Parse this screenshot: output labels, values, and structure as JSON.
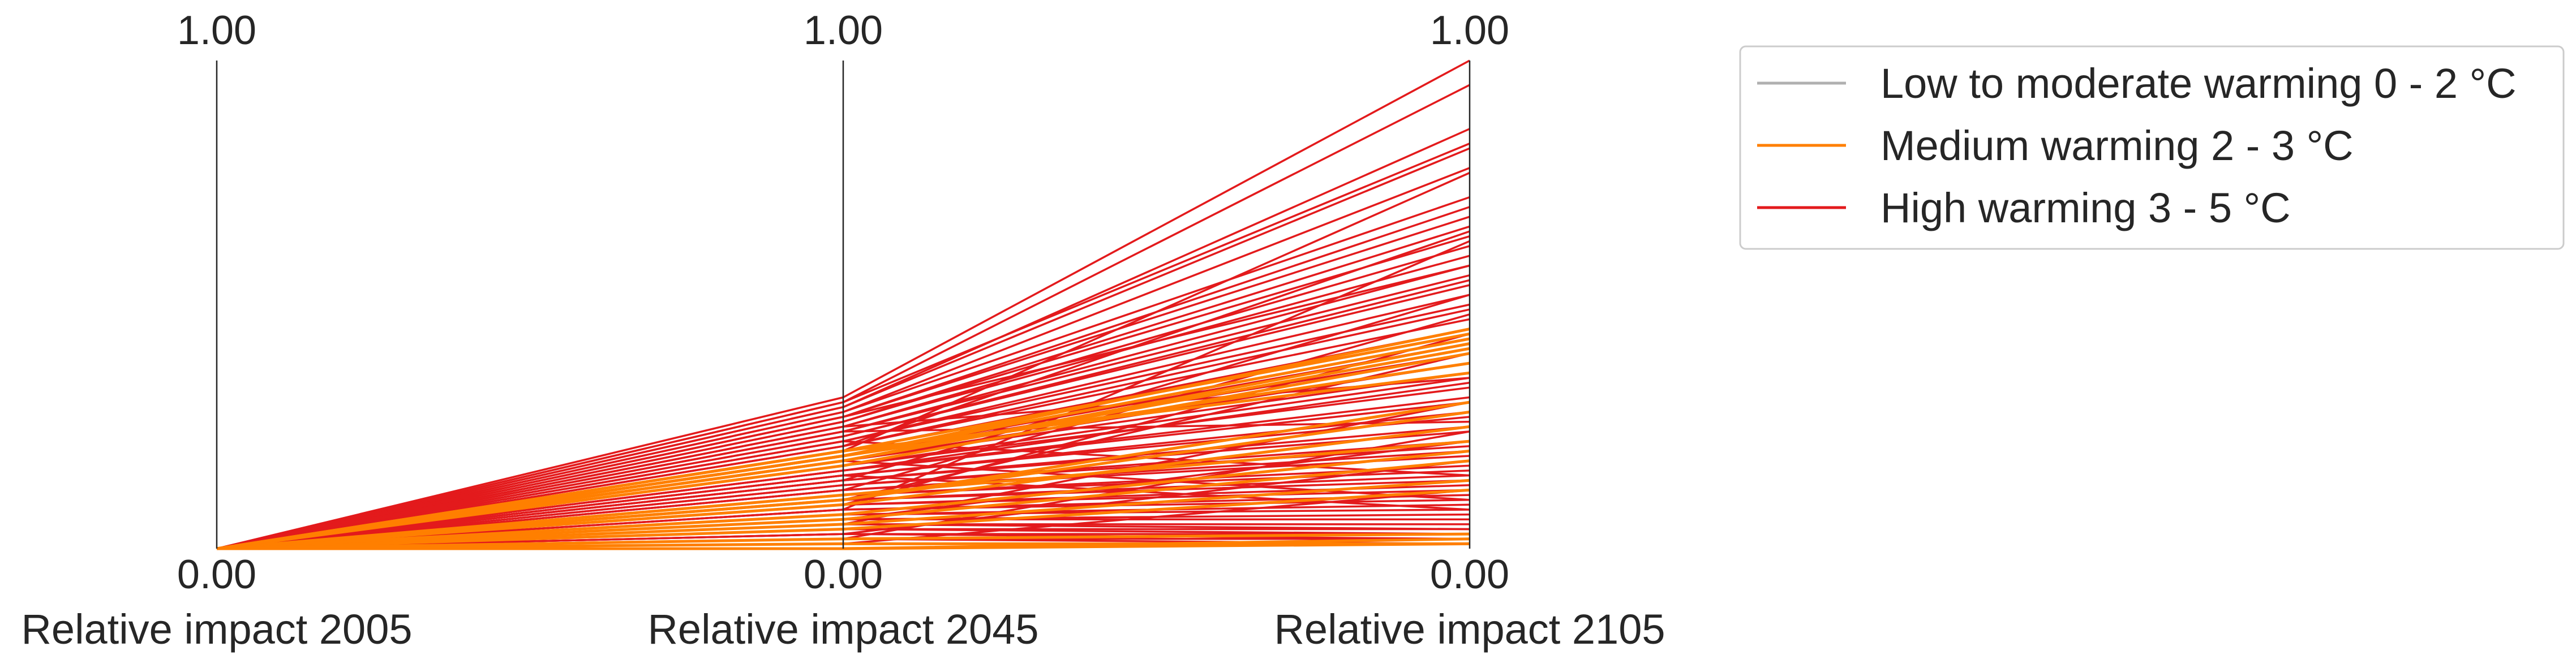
{
  "chart_data": {
    "type": "parallel_coordinates",
    "axes": [
      {
        "label": "Relative impact 2005",
        "min_label": "0.00",
        "max_label": "1.00",
        "range": [
          0,
          1
        ]
      },
      {
        "label": "Relative impact 2045",
        "min_label": "0.00",
        "max_label": "1.00",
        "range": [
          0,
          1
        ]
      },
      {
        "label": "Relative impact 2105",
        "min_label": "0.00",
        "max_label": "1.00",
        "range": [
          0,
          1
        ]
      }
    ],
    "legend": {
      "placement": "outside-right-top",
      "entries": [
        {
          "label": "Low to moderate warming 0 - 2 °C",
          "color": "#b0b0b0"
        },
        {
          "label": "Medium warming 2 - 3 °C",
          "color": "#ff7f00"
        },
        {
          "label": "High warming 3 - 5 °C",
          "color": "#e31a1c"
        }
      ]
    },
    "series": [
      {
        "name": "High warming 3 - 5 °C",
        "color": "#e31a1c",
        "lines": [
          [
            0,
            0.31,
            1.0
          ],
          [
            0,
            0.3,
            0.95
          ],
          [
            0,
            0.3,
            0.83
          ],
          [
            0,
            0.29,
            0.82
          ],
          [
            0,
            0.29,
            0.86
          ],
          [
            0,
            0.28,
            0.78
          ],
          [
            0,
            0.28,
            0.72
          ],
          [
            0,
            0.27,
            0.7
          ],
          [
            0,
            0.27,
            0.68
          ],
          [
            0,
            0.26,
            0.66
          ],
          [
            0,
            0.26,
            0.64
          ],
          [
            0,
            0.25,
            0.62
          ],
          [
            0,
            0.25,
            0.6
          ],
          [
            0,
            0.24,
            0.58
          ],
          [
            0,
            0.24,
            0.56
          ],
          [
            0,
            0.23,
            0.55
          ],
          [
            0,
            0.23,
            0.54
          ],
          [
            0,
            0.22,
            0.52
          ],
          [
            0,
            0.22,
            0.5
          ],
          [
            0,
            0.21,
            0.49
          ],
          [
            0,
            0.21,
            0.47
          ],
          [
            0,
            0.2,
            0.45
          ],
          [
            0,
            0.2,
            0.44
          ],
          [
            0,
            0.19,
            0.42
          ],
          [
            0,
            0.19,
            0.4
          ],
          [
            0,
            0.18,
            0.38
          ],
          [
            0,
            0.18,
            0.36
          ],
          [
            0,
            0.17,
            0.35
          ],
          [
            0,
            0.17,
            0.33
          ],
          [
            0,
            0.16,
            0.31
          ],
          [
            0,
            0.16,
            0.3
          ],
          [
            0,
            0.15,
            0.28
          ],
          [
            0,
            0.15,
            0.27
          ],
          [
            0,
            0.14,
            0.25
          ],
          [
            0,
            0.14,
            0.24
          ],
          [
            0,
            0.13,
            0.22
          ],
          [
            0,
            0.13,
            0.21
          ],
          [
            0,
            0.12,
            0.2
          ],
          [
            0,
            0.12,
            0.19
          ],
          [
            0,
            0.11,
            0.17
          ],
          [
            0,
            0.11,
            0.16
          ],
          [
            0,
            0.1,
            0.15
          ],
          [
            0,
            0.1,
            0.14
          ],
          [
            0,
            0.09,
            0.13
          ],
          [
            0,
            0.09,
            0.12
          ],
          [
            0,
            0.08,
            0.11
          ],
          [
            0,
            0.08,
            0.1
          ],
          [
            0,
            0.07,
            0.09
          ],
          [
            0,
            0.07,
            0.08
          ],
          [
            0,
            0.06,
            0.07
          ],
          [
            0,
            0.06,
            0.06
          ],
          [
            0,
            0.05,
            0.05
          ],
          [
            0,
            0.05,
            0.04
          ],
          [
            0,
            0.04,
            0.04
          ],
          [
            0,
            0.04,
            0.03
          ],
          [
            0,
            0.03,
            0.03
          ],
          [
            0,
            0.03,
            0.02
          ],
          [
            0,
            0.02,
            0.02
          ],
          [
            0,
            0.02,
            0.01
          ],
          [
            0,
            0.01,
            0.01
          ],
          [
            0,
            0.0,
            0.01
          ],
          [
            0,
            0.2,
            0.77
          ],
          [
            0,
            0.08,
            0.63
          ],
          [
            0,
            0.25,
            0.35
          ],
          [
            0,
            0.12,
            0.48
          ],
          [
            0,
            0.05,
            0.3
          ],
          [
            0,
            0.22,
            0.15
          ],
          [
            0,
            0.18,
            0.1
          ],
          [
            0,
            0.1,
            0.4
          ],
          [
            0,
            0.06,
            0.22
          ],
          [
            0,
            0.03,
            0.18
          ],
          [
            0,
            0.15,
            0.08
          ],
          [
            0,
            0.27,
            0.58
          ],
          [
            0,
            0.21,
            0.65
          ],
          [
            0,
            0.14,
            0.52
          ],
          [
            0,
            0.09,
            0.44
          ],
          [
            0,
            0.24,
            0.26
          ],
          [
            0,
            0.16,
            0.34
          ],
          [
            0,
            0.01,
            0.12
          ],
          [
            0,
            0.02,
            0.24
          ]
        ]
      },
      {
        "name": "Medium warming 2 - 3 °C",
        "color": "#ff7f00",
        "lines": [
          [
            0,
            0.2,
            0.44
          ],
          [
            0,
            0.19,
            0.45
          ],
          [
            0,
            0.19,
            0.43
          ],
          [
            0,
            0.18,
            0.42
          ],
          [
            0,
            0.18,
            0.41
          ],
          [
            0,
            0.17,
            0.4
          ],
          [
            0,
            0.19,
            0.38
          ],
          [
            0,
            0.2,
            0.36
          ],
          [
            0,
            0.1,
            0.3
          ],
          [
            0,
            0.1,
            0.28
          ],
          [
            0,
            0.09,
            0.25
          ],
          [
            0,
            0.11,
            0.22
          ],
          [
            0,
            0.06,
            0.18
          ],
          [
            0,
            0.05,
            0.14
          ],
          [
            0,
            0.07,
            0.2
          ],
          [
            0,
            0.04,
            0.12
          ],
          [
            0,
            0.0,
            0.01
          ],
          [
            0,
            0.01,
            0.01
          ],
          [
            0,
            0.0,
            0.02
          ],
          [
            0,
            0.02,
            0.03
          ]
        ]
      },
      {
        "name": "Low to moderate warming 0 - 2 °C",
        "color": "#b0b0b0",
        "lines": []
      }
    ]
  }
}
